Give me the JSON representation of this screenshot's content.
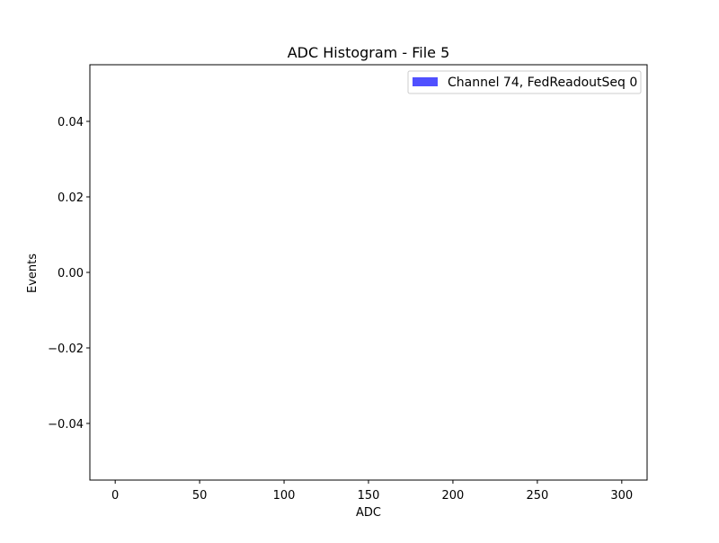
{
  "chart_data": {
    "type": "bar",
    "title": "ADC Histogram - File 5",
    "xlabel": "ADC",
    "ylabel": "Events",
    "xlim": [
      -15,
      315
    ],
    "ylim": [
      -0.055,
      0.055
    ],
    "x_ticks": [
      0,
      50,
      100,
      150,
      200,
      250,
      300
    ],
    "y_ticks": [
      -0.04,
      -0.02,
      0.0,
      0.02,
      0.04
    ],
    "y_tick_labels": [
      "−0.04",
      "−0.02",
      "0.00",
      "0.02",
      "0.04"
    ],
    "grid": false,
    "legend_position": "top-right",
    "series": [
      {
        "name": "Channel 74, FedReadoutSeq 0",
        "color": "#5050ff",
        "bins": [],
        "values": []
      }
    ]
  }
}
